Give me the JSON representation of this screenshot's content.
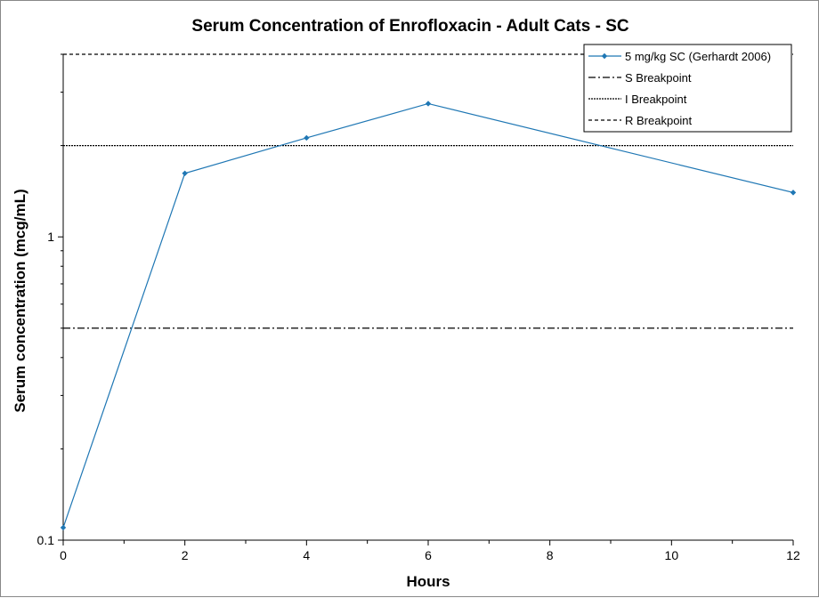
{
  "chart_data": {
    "type": "line",
    "title": "Serum Concentration of Enrofloxacin - Adult Cats - SC",
    "xlabel": "Hours",
    "ylabel": "Serum concentration (mcg/mL)",
    "xlim": [
      0,
      12
    ],
    "ylim": [
      0.1,
      4
    ],
    "yscale": "log",
    "grid": false,
    "legend_position": "top-right",
    "x_ticks": [
      "0",
      "2",
      "4",
      "6",
      "8",
      "10",
      "12"
    ],
    "y_ticks": [
      "0.1",
      "1"
    ],
    "series": [
      {
        "name": "5 mg/kg SC (Gerhardt 2006)",
        "x": [
          0,
          2,
          4,
          6,
          12
        ],
        "y": [
          0.11,
          1.62,
          2.12,
          2.75,
          1.4
        ],
        "color": "#1f77b4",
        "style": "solid",
        "marker": "diamond"
      },
      {
        "name": "S Breakpoint",
        "y": 0.5,
        "style": "dashdot",
        "color": "#000000"
      },
      {
        "name": "I Breakpoint",
        "y": 2,
        "style": "dotted",
        "color": "#000000"
      },
      {
        "name": "R Breakpoint",
        "y": 4,
        "style": "dashed",
        "color": "#000000"
      }
    ]
  }
}
